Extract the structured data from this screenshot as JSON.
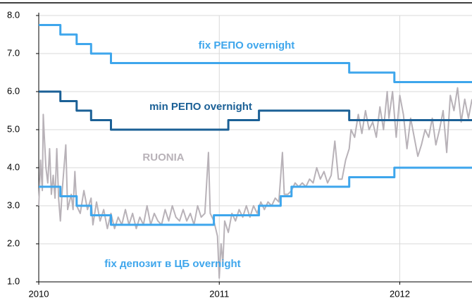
{
  "chart_data": {
    "type": "line",
    "xlim": [
      2010,
      2012.4
    ],
    "xticks": [
      2010,
      2011,
      2012
    ],
    "ylim": [
      1,
      8
    ],
    "yticks": [
      {
        "value": 1,
        "label": "1.0"
      },
      {
        "value": 2,
        "label": "2.0"
      },
      {
        "value": 3,
        "label": "3.0"
      },
      {
        "value": 4,
        "label": "4.0"
      },
      {
        "value": 5,
        "label": "5.0"
      },
      {
        "value": 6,
        "label": "6.0"
      },
      {
        "value": 7,
        "label": "7.0"
      },
      {
        "value": 8,
        "label": "8.0"
      }
    ],
    "grid": true,
    "annotations": [
      "fix РЕПО overnight",
      "min РЕПО overnight",
      "RUONIA",
      "fix депозит в ЦБ overnight"
    ],
    "series": [
      {
        "name": "fix РЕПО overnight",
        "color": "#3ea6ec",
        "x": [
          2010,
          2010.12,
          2010.12,
          2010.21,
          2010.21,
          2010.29,
          2010.29,
          2010.4,
          2010.4,
          2011.72,
          2011.72,
          2011.97,
          2011.97,
          2012.4
        ],
        "values": [
          7.75,
          7.75,
          7.5,
          7.5,
          7.25,
          7.25,
          7.0,
          7.0,
          6.75,
          6.75,
          6.5,
          6.5,
          6.25,
          6.25
        ]
      },
      {
        "name": "min РЕПО overnight",
        "color": "#1b6096",
        "x": [
          2010,
          2010.12,
          2010.12,
          2010.21,
          2010.21,
          2010.29,
          2010.29,
          2010.4,
          2010.4,
          2011.05,
          2011.05,
          2011.22,
          2011.22,
          2011.72,
          2011.72,
          2012.4
        ],
        "values": [
          6.0,
          6.0,
          5.75,
          5.75,
          5.5,
          5.5,
          5.25,
          5.25,
          5.0,
          5.0,
          5.25,
          5.25,
          5.5,
          5.5,
          5.25,
          5.25
        ]
      },
      {
        "name": "RUONIA",
        "color": "#b8b2b8",
        "x": [
          2010.0,
          2010.01,
          2010.02,
          2010.025,
          2010.03,
          2010.04,
          2010.05,
          2010.06,
          2010.07,
          2010.08,
          2010.09,
          2010.1,
          2010.11,
          2010.12,
          2010.13,
          2010.15,
          2010.16,
          2010.18,
          2010.19,
          2010.2,
          2010.21,
          2010.23,
          2010.25,
          2010.27,
          2010.29,
          2010.3,
          2010.32,
          2010.34,
          2010.36,
          2010.38,
          2010.4,
          2010.42,
          2010.44,
          2010.46,
          2010.48,
          2010.5,
          2010.52,
          2010.54,
          2010.56,
          2010.58,
          2010.6,
          2010.62,
          2010.64,
          2010.66,
          2010.68,
          2010.7,
          2010.72,
          2010.74,
          2010.76,
          2010.78,
          2010.8,
          2010.82,
          2010.84,
          2010.86,
          2010.88,
          2010.9,
          2010.92,
          2010.94,
          2010.95,
          2010.97,
          2010.99,
          2011.0,
          2011.01,
          2011.02,
          2011.03,
          2011.05,
          2011.07,
          2011.09,
          2011.11,
          2011.13,
          2011.15,
          2011.17,
          2011.19,
          2011.21,
          2011.23,
          2011.25,
          2011.27,
          2011.29,
          2011.31,
          2011.33,
          2011.35,
          2011.36,
          2011.38,
          2011.4,
          2011.42,
          2011.44,
          2011.46,
          2011.48,
          2011.5,
          2011.52,
          2011.54,
          2011.56,
          2011.58,
          2011.6,
          2011.62,
          2011.64,
          2011.66,
          2011.68,
          2011.7,
          2011.72,
          2011.73,
          2011.75,
          2011.77,
          2011.79,
          2011.81,
          2011.83,
          2011.85,
          2011.87,
          2011.89,
          2011.91,
          2011.93,
          2011.94,
          2011.96,
          2011.98,
          2012.0,
          2012.02,
          2012.04,
          2012.06,
          2012.08,
          2012.1,
          2012.12,
          2012.14,
          2012.16,
          2012.18,
          2012.2,
          2012.22,
          2012.24,
          2012.26,
          2012.28,
          2012.3,
          2012.32,
          2012.34,
          2012.36,
          2012.38,
          2012.4
        ],
        "values": [
          3.0,
          4.2,
          3.4,
          5.4,
          4.9,
          4.0,
          3.6,
          4.5,
          3.3,
          3.8,
          3.2,
          4.5,
          3.2,
          2.6,
          3.4,
          4.6,
          2.9,
          3.3,
          2.9,
          3.9,
          3.0,
          2.8,
          3.4,
          2.9,
          3.2,
          2.5,
          3.1,
          2.6,
          2.9,
          2.4,
          2.8,
          2.4,
          2.7,
          2.5,
          2.9,
          2.5,
          2.8,
          2.4,
          2.7,
          2.5,
          3.0,
          2.5,
          2.8,
          2.6,
          2.5,
          2.9,
          2.6,
          3.0,
          2.7,
          2.6,
          2.9,
          2.6,
          2.8,
          2.5,
          3.0,
          2.7,
          2.8,
          4.4,
          2.8,
          2.6,
          2.2,
          1.1,
          2.0,
          1.5,
          2.6,
          2.3,
          2.8,
          2.6,
          2.9,
          2.7,
          3.0,
          2.7,
          3.0,
          2.8,
          3.1,
          2.9,
          3.1,
          3.0,
          3.2,
          3.1,
          4.4,
          3.3,
          3.3,
          3.4,
          3.6,
          3.5,
          3.6,
          3.5,
          3.7,
          3.6,
          4.0,
          3.7,
          3.9,
          3.6,
          3.8,
          4.7,
          3.7,
          3.7,
          4.2,
          4.5,
          5.0,
          4.8,
          5.4,
          4.9,
          5.5,
          5.0,
          5.2,
          4.8,
          5.6,
          5.0,
          6.0,
          5.3,
          6.0,
          4.8,
          5.9,
          5.4,
          4.5,
          5.3,
          4.8,
          4.3,
          4.6,
          5.0,
          4.8,
          5.3,
          4.6,
          5.0,
          5.5,
          4.4,
          5.9,
          5.5,
          6.1,
          5.2,
          5.8,
          5.3,
          5.8
        ]
      },
      {
        "name": "fix депозит в ЦБ overnight",
        "color": "#3ea6ec",
        "x": [
          2010,
          2010.12,
          2010.12,
          2010.21,
          2010.21,
          2010.29,
          2010.29,
          2010.4,
          2010.4,
          2010.97,
          2010.97,
          2011.22,
          2011.22,
          2011.34,
          2011.34,
          2011.4,
          2011.4,
          2011.72,
          2011.72,
          2011.97,
          2011.97,
          2012.4
        ],
        "values": [
          3.5,
          3.5,
          3.25,
          3.25,
          3.0,
          3.0,
          2.75,
          2.75,
          2.5,
          2.5,
          2.75,
          2.75,
          3.0,
          3.0,
          3.25,
          3.25,
          3.5,
          3.5,
          3.75,
          3.75,
          4.0,
          4.0
        ]
      }
    ]
  }
}
